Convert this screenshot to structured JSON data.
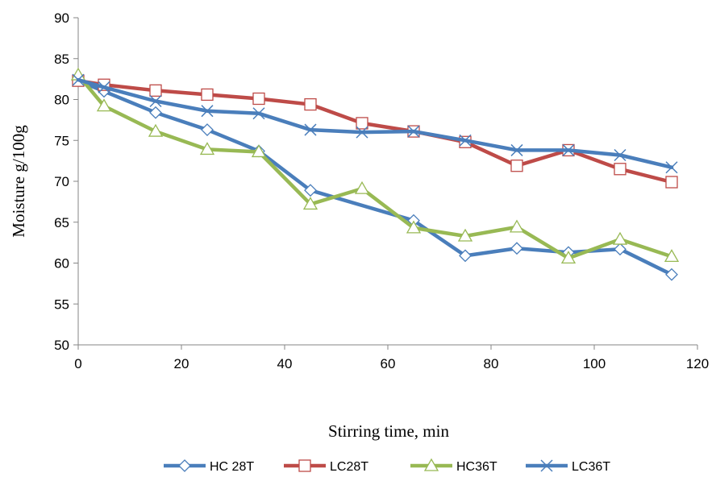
{
  "chart_data": {
    "type": "line",
    "title": "",
    "xlabel": "Stirring time, min",
    "ylabel": "Moisture g/100g",
    "xlim": [
      0,
      120
    ],
    "ylim": [
      50,
      90
    ],
    "xticks": [
      0,
      20,
      40,
      60,
      80,
      100,
      120
    ],
    "yticks": [
      50,
      55,
      60,
      65,
      70,
      75,
      80,
      85,
      90
    ],
    "grid": false,
    "legend_position": "bottom",
    "series": [
      {
        "name": "HC 28T",
        "color": "#4a7ebb",
        "marker": "diamond",
        "x": [
          0,
          5,
          15,
          25,
          35,
          45,
          65,
          75,
          85,
          95,
          105,
          115
        ],
        "y": [
          82.3,
          81.0,
          78.4,
          76.3,
          73.7,
          68.9,
          65.2,
          60.9,
          61.8,
          61.3,
          61.7,
          58.6
        ]
      },
      {
        "name": "LC28T",
        "color": "#be4b48",
        "marker": "square",
        "x": [
          0,
          5,
          15,
          25,
          35,
          45,
          55,
          65,
          75,
          85,
          95,
          105,
          115
        ],
        "y": [
          82.3,
          81.8,
          81.1,
          80.6,
          80.1,
          79.4,
          77.1,
          76.1,
          74.8,
          71.9,
          73.8,
          71.5,
          69.9
        ]
      },
      {
        "name": "HC36T",
        "color": "#98b954",
        "marker": "triangle",
        "x": [
          0,
          5,
          15,
          25,
          35,
          45,
          55,
          65,
          75,
          85,
          95,
          105,
          115
        ],
        "y": [
          83.0,
          79.2,
          76.1,
          73.9,
          73.6,
          67.2,
          69.1,
          64.3,
          63.3,
          64.4,
          60.6,
          62.9,
          60.8
        ]
      },
      {
        "name": "LC36T",
        "color": "#4a7ebb",
        "marker": "x",
        "x": [
          0,
          5,
          15,
          25,
          35,
          45,
          55,
          65,
          75,
          85,
          95,
          105,
          115
        ],
        "y": [
          82.4,
          81.5,
          79.8,
          78.6,
          78.3,
          76.3,
          76.0,
          76.1,
          75.0,
          73.8,
          73.8,
          73.2,
          71.7
        ]
      }
    ]
  }
}
